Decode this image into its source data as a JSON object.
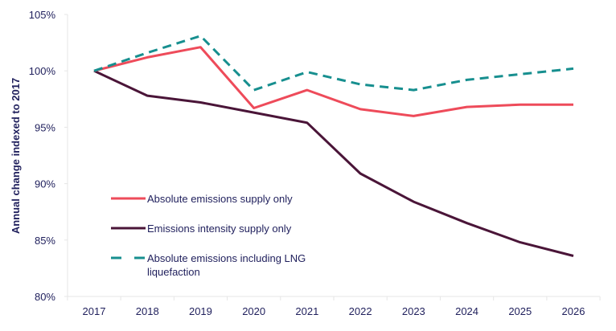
{
  "chart_data": {
    "type": "line",
    "title": "",
    "xlabel": "",
    "ylabel": "Annual change indexed to 2017",
    "x": [
      "2017",
      "2018",
      "2019",
      "2020",
      "2021",
      "2022",
      "2023",
      "2024",
      "2025",
      "2026"
    ],
    "ylim": [
      80,
      105
    ],
    "yticks": [
      "80%",
      "85%",
      "90%",
      "95%",
      "100%",
      "105%"
    ],
    "ytick_values": [
      80,
      85,
      90,
      95,
      100,
      105
    ],
    "grid": false,
    "legend_position": "center-left",
    "series": [
      {
        "name": "Absolute emissions supply only",
        "color": "#ee4b5a",
        "style": "solid",
        "values": [
          100,
          101.2,
          102.1,
          96.7,
          98.3,
          96.6,
          96.0,
          96.8,
          97.0,
          97.0
        ]
      },
      {
        "name": "Emissions intensity supply only",
        "color": "#4a1538",
        "style": "solid",
        "values": [
          100,
          97.8,
          97.2,
          96.3,
          95.4,
          90.9,
          88.4,
          86.5,
          84.8,
          83.6
        ]
      },
      {
        "name": "Absolute emissions including LNG liquefaction",
        "legend_lines": [
          "Absolute emissions including LNG",
          "liquefaction"
        ],
        "color": "#178f8f",
        "style": "dashed",
        "values": [
          100,
          101.6,
          103.1,
          98.3,
          99.9,
          98.8,
          98.3,
          99.2,
          99.7,
          100.2
        ]
      }
    ]
  }
}
